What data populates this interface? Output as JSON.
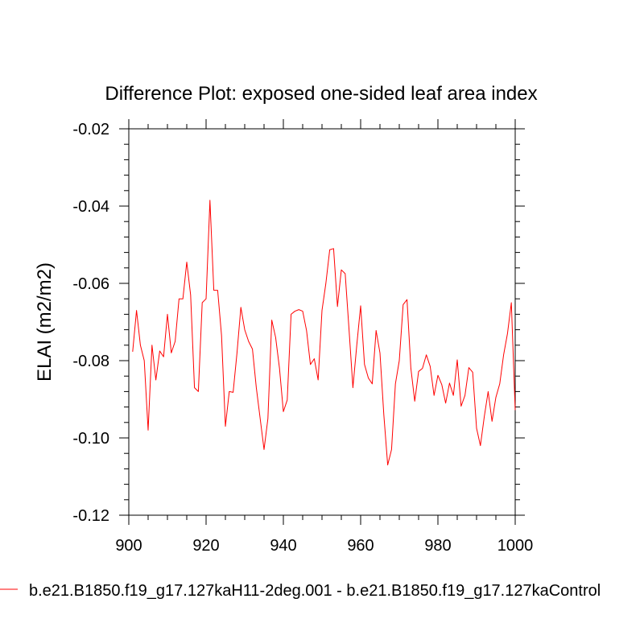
{
  "chart_data": {
    "type": "line",
    "title": "Difference Plot: exposed one-sided leaf area index",
    "xlabel": "",
    "ylabel": "ELAI  (m2/m2)",
    "xlim": [
      900,
      1000
    ],
    "ylim": [
      -0.12,
      -0.02
    ],
    "x_ticks": [
      900,
      920,
      940,
      960,
      980,
      1000
    ],
    "x_tick_labels": [
      "900",
      "920",
      "940",
      "960",
      "980",
      "1000"
    ],
    "y_ticks": [
      -0.12,
      -0.1,
      -0.08,
      -0.06,
      -0.04,
      -0.02
    ],
    "y_tick_labels": [
      "-0.12",
      "-0.10",
      "-0.08",
      "-0.06",
      "-0.04",
      "-0.02"
    ],
    "grid": false,
    "legend_position": "bottom",
    "series": [
      {
        "name": "b.e21.B1850.f19_g17.127kaH11-2deg.001 - b.e21.B1850.f19_g17.127kaControl",
        "color": "#ff0000",
        "x": [
          901,
          902,
          903,
          904,
          905,
          906,
          907,
          908,
          909,
          910,
          911,
          912,
          913,
          914,
          915,
          916,
          917,
          918,
          919,
          920,
          921,
          922,
          923,
          924,
          925,
          926,
          927,
          928,
          929,
          930,
          931,
          932,
          933,
          934,
          935,
          936,
          937,
          938,
          939,
          940,
          941,
          942,
          943,
          944,
          945,
          946,
          947,
          948,
          949,
          950,
          951,
          952,
          953,
          954,
          955,
          956,
          957,
          958,
          959,
          960,
          961,
          962,
          963,
          964,
          965,
          966,
          967,
          968,
          969,
          970,
          971,
          972,
          973,
          974,
          975,
          976,
          977,
          978,
          979,
          980,
          981,
          982,
          983,
          984,
          985,
          986,
          987,
          988,
          989,
          990,
          991,
          992,
          993,
          994,
          995,
          996,
          997,
          998,
          999,
          1000
        ],
        "values": [
          -0.0777,
          -0.067,
          -0.076,
          -0.08,
          -0.098,
          -0.076,
          -0.085,
          -0.0775,
          -0.079,
          -0.068,
          -0.078,
          -0.075,
          -0.064,
          -0.064,
          -0.0545,
          -0.063,
          -0.087,
          -0.088,
          -0.065,
          -0.064,
          -0.0385,
          -0.0618,
          -0.0618,
          -0.0735,
          -0.097,
          -0.088,
          -0.0882,
          -0.078,
          -0.0662,
          -0.072,
          -0.075,
          -0.077,
          -0.087,
          -0.095,
          -0.103,
          -0.095,
          -0.0695,
          -0.074,
          -0.082,
          -0.0932,
          -0.0902,
          -0.068,
          -0.0672,
          -0.0668,
          -0.0672,
          -0.0722,
          -0.081,
          -0.0795,
          -0.085,
          -0.067,
          -0.06,
          -0.0513,
          -0.051,
          -0.066,
          -0.0565,
          -0.0575,
          -0.072,
          -0.087,
          -0.076,
          -0.0658,
          -0.081,
          -0.0845,
          -0.086,
          -0.0722,
          -0.078,
          -0.094,
          -0.107,
          -0.103,
          -0.086,
          -0.08,
          -0.0655,
          -0.0642,
          -0.082,
          -0.0905,
          -0.0828,
          -0.082,
          -0.0785,
          -0.0815,
          -0.089,
          -0.0838,
          -0.0862,
          -0.091,
          -0.0858,
          -0.089,
          -0.0798,
          -0.0918,
          -0.089,
          -0.0818,
          -0.083,
          -0.0975,
          -0.102,
          -0.0945,
          -0.088,
          -0.0957,
          -0.0895,
          -0.086,
          -0.0785,
          -0.073,
          -0.065,
          -0.0928
        ]
      }
    ]
  }
}
